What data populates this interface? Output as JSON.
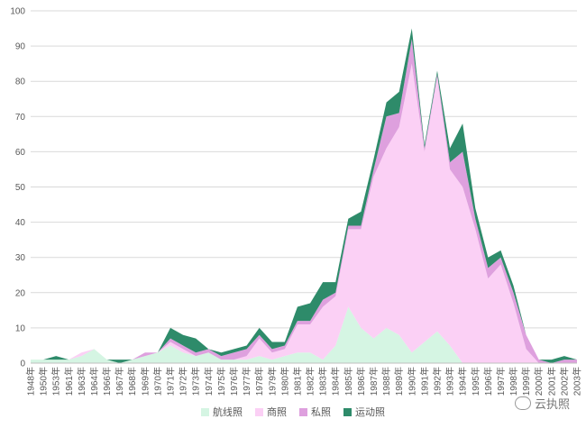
{
  "chart_data": {
    "type": "area",
    "stacked": true,
    "ylim": [
      0,
      100
    ],
    "yticks": [
      0,
      10,
      20,
      30,
      40,
      50,
      60,
      70,
      80,
      90,
      100
    ],
    "grid": true,
    "legend_position": "bottom",
    "categories": [
      "1948年",
      "1950年",
      "1953年",
      "1961年",
      "1963年",
      "1964年",
      "1966年",
      "1967年",
      "1968年",
      "1969年",
      "1970年",
      "1971年",
      "1972年",
      "1973年",
      "1974年",
      "1975年",
      "1976年",
      "1977年",
      "1978年",
      "1979年",
      "1980年",
      "1981年",
      "1982年",
      "1983年",
      "1984年",
      "1985年",
      "1986年",
      "1987年",
      "1988年",
      "1989年",
      "1990年",
      "1991年",
      "1992年",
      "1993年",
      "1994年",
      "1995年",
      "1996年",
      "1997年",
      "1998年",
      "1999年",
      "2000年",
      "2001年",
      "2002年",
      "2003年"
    ],
    "series": [
      {
        "name": "航线照",
        "color": "#d5f5e3",
        "values": [
          1,
          1,
          1,
          1,
          2,
          4,
          1,
          0,
          1,
          2,
          3,
          5,
          3,
          2,
          3,
          1,
          1,
          1,
          2,
          1,
          2,
          3,
          3,
          1,
          5,
          16,
          10,
          7,
          10,
          8,
          3,
          6,
          9,
          5,
          0,
          0,
          0,
          0,
          0,
          0,
          0,
          0,
          0,
          0
        ]
      },
      {
        "name": "商照",
        "color": "#fbd0f5",
        "values": [
          0,
          0,
          0,
          0,
          1,
          0,
          0,
          0,
          0,
          0,
          0,
          1,
          1,
          0,
          0,
          0,
          0,
          1,
          5,
          2,
          2,
          8,
          8,
          15,
          14,
          22,
          28,
          46,
          51,
          59,
          82,
          54,
          72,
          50,
          50,
          38,
          24,
          28,
          17,
          4,
          0,
          0,
          0,
          0
        ]
      },
      {
        "name": "私照",
        "color": "#dea0de",
        "values": [
          0,
          0,
          0,
          0,
          0,
          0,
          0,
          0,
          0,
          1,
          0,
          1,
          1,
          1,
          1,
          1,
          2,
          2,
          1,
          1,
          1,
          1,
          1,
          2,
          1,
          1,
          1,
          2,
          9,
          4,
          7,
          1,
          1,
          2,
          10,
          3,
          3,
          2,
          3,
          4,
          1,
          0,
          1,
          1
        ]
      },
      {
        "name": "运动照",
        "color": "#2e8b6a",
        "values": [
          0,
          0,
          1,
          0,
          0,
          0,
          0,
          1,
          0,
          0,
          0,
          3,
          3,
          4,
          0,
          1,
          1,
          1,
          2,
          2,
          1,
          4,
          5,
          5,
          3,
          2,
          4,
          3,
          4,
          6,
          3,
          1,
          1,
          4,
          8,
          3,
          3,
          2,
          2,
          0,
          0,
          1,
          1,
          0
        ]
      }
    ]
  },
  "watermark": {
    "text": "云执照"
  }
}
